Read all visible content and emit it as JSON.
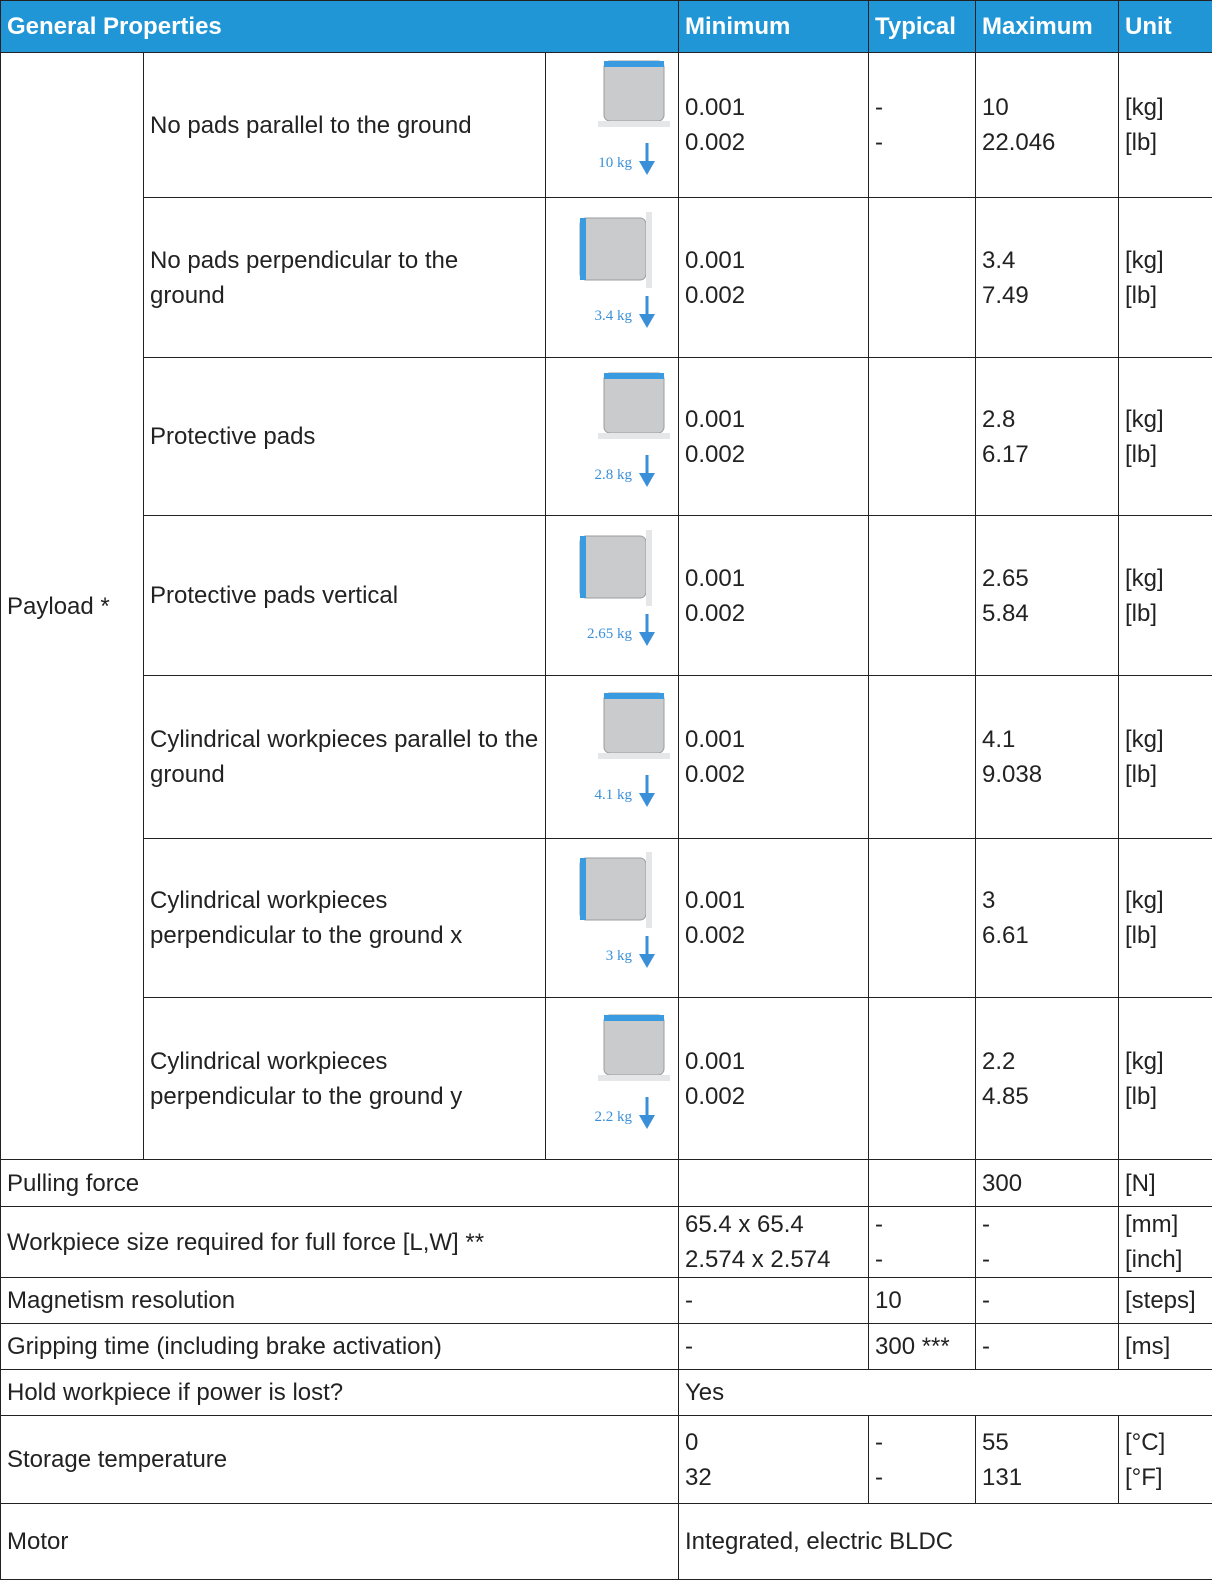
{
  "table": {
    "header": [
      "General Properties",
      "Minimum",
      "Typical",
      "Maximum",
      "Unit"
    ],
    "payload": {
      "label": "Payload *",
      "rows": [
        {
          "name": "No pads parallel to the ground",
          "image_label": "10 kg",
          "minimum": [
            "0.001",
            "0.002"
          ],
          "typical": [
            "-",
            "-"
          ],
          "maximum": [
            "10",
            "22.046"
          ],
          "unit": [
            "[kg]",
            "[lb]"
          ]
        },
        {
          "name": "No pads perpendicular to the ground",
          "image_label": "3.4 kg",
          "minimum": [
            "0.001",
            "0.002"
          ],
          "typical": [],
          "maximum": [
            "3.4",
            "7.49"
          ],
          "unit": [
            "[kg]",
            "[lb]"
          ]
        },
        {
          "name": "Protective pads",
          "image_label": "2.8 kg",
          "minimum": [
            "0.001",
            "0.002"
          ],
          "typical": [],
          "maximum": [
            "2.8",
            "6.17"
          ],
          "unit": [
            "[kg]",
            "[lb]"
          ]
        },
        {
          "name": "Protective pads vertical",
          "image_label": "2.65 kg",
          "minimum": [
            "0.001",
            "0.002"
          ],
          "typical": [],
          "maximum": [
            "2.65",
            "5.84"
          ],
          "unit": [
            "[kg]",
            "[lb]"
          ]
        },
        {
          "name": "Cylindrical workpieces parallel to the ground",
          "image_label": "4.1 kg",
          "minimum": [
            "0.001",
            "0.002"
          ],
          "typical": [],
          "maximum": [
            "4.1",
            "9.038"
          ],
          "unit": [
            "[kg]",
            "[lb]"
          ]
        },
        {
          "name": "Cylindrical workpieces perpendicular to the ground x",
          "image_label": "3 kg",
          "minimum": [
            "0.001",
            "0.002"
          ],
          "typical": [],
          "maximum": [
            "3",
            "6.61"
          ],
          "unit": [
            "[kg]",
            "[lb]"
          ]
        },
        {
          "name": "Cylindrical workpieces perpendicular to the ground y",
          "image_label": "2.2 kg",
          "minimum": [
            "0.001",
            "0.002"
          ],
          "typical": [],
          "maximum": [
            "2.2",
            "4.85"
          ],
          "unit": [
            "[kg]",
            "[lb]"
          ]
        }
      ]
    },
    "rows": [
      {
        "name": "Pulling force",
        "minimum": [],
        "typical": [],
        "maximum": [
          "300"
        ],
        "unit": [
          "[N]"
        ]
      },
      {
        "name": "Workpiece size required for full force [L,W] **",
        "minimum": [
          "65.4 x 65.4",
          "2.574 x 2.574"
        ],
        "typical": [
          "-",
          "-"
        ],
        "maximum": [
          "-",
          "-"
        ],
        "unit": [
          "[mm]",
          "[inch]"
        ]
      },
      {
        "name": "Magnetism resolution",
        "minimum": [
          "-"
        ],
        "typical": [
          "10"
        ],
        "maximum": [
          "-"
        ],
        "unit": [
          "[steps]"
        ]
      },
      {
        "name": "Gripping time (including brake activation)",
        "minimum": [
          "-"
        ],
        "typical": [
          "300 ***"
        ],
        "maximum": [
          "-"
        ],
        "unit": [
          "[ms]"
        ]
      },
      {
        "name": "Hold workpiece if power is lost?",
        "value": "Yes"
      },
      {
        "name": "Storage temperature",
        "minimum": [
          "0",
          "32"
        ],
        "typical": [
          "-",
          "-"
        ],
        "maximum": [
          "55",
          "131"
        ],
        "unit": [
          "[°C]",
          "[°F]"
        ]
      },
      {
        "name": "Motor",
        "value": "Integrated, electric BLDC"
      }
    ]
  }
}
